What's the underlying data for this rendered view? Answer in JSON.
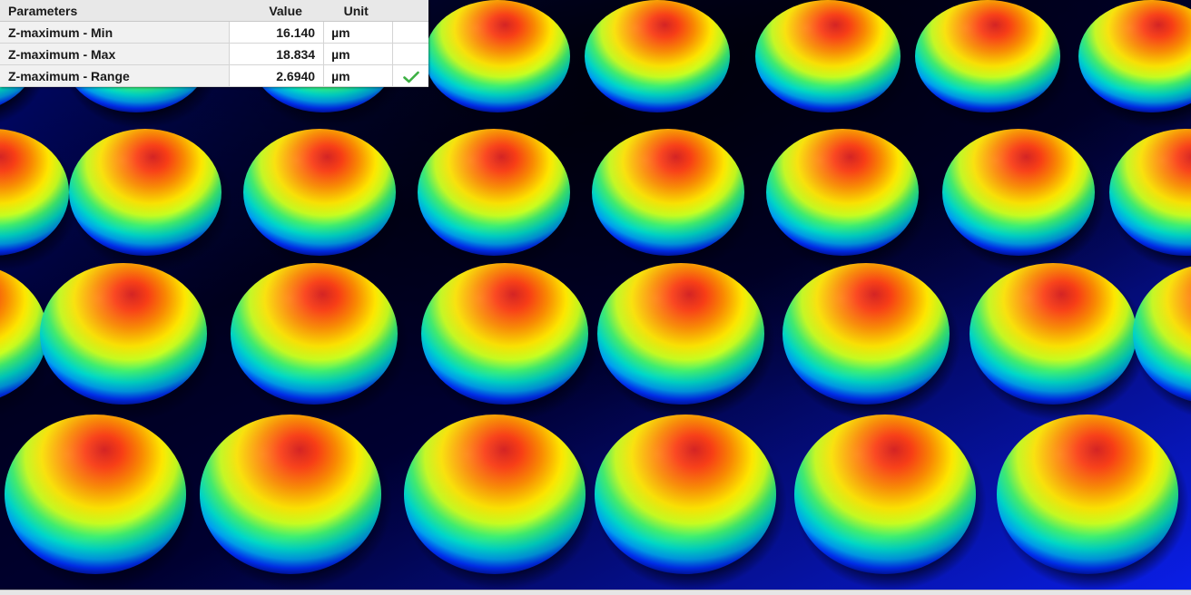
{
  "table": {
    "headers": {
      "parameter": "Parameters",
      "value": "Value",
      "unit": "Unit"
    },
    "rows": [
      {
        "name": "Z-maximum - Min",
        "value": "16.140",
        "unit": "µm",
        "status": ""
      },
      {
        "name": "Z-maximum - Max",
        "value": "18.834",
        "unit": "µm",
        "status": ""
      },
      {
        "name": "Z-maximum - Range",
        "value": "2.6940",
        "unit": "µm",
        "status": "pass-check"
      }
    ]
  },
  "colors": {
    "background_dark": "#000018",
    "background_blue": "#0a14c8",
    "colormap": [
      "#0010ff",
      "#00e0e0",
      "#40ff60",
      "#ffff00",
      "#ff9000",
      "#ff3000",
      "#d01020"
    ],
    "check": "#3cb043"
  }
}
